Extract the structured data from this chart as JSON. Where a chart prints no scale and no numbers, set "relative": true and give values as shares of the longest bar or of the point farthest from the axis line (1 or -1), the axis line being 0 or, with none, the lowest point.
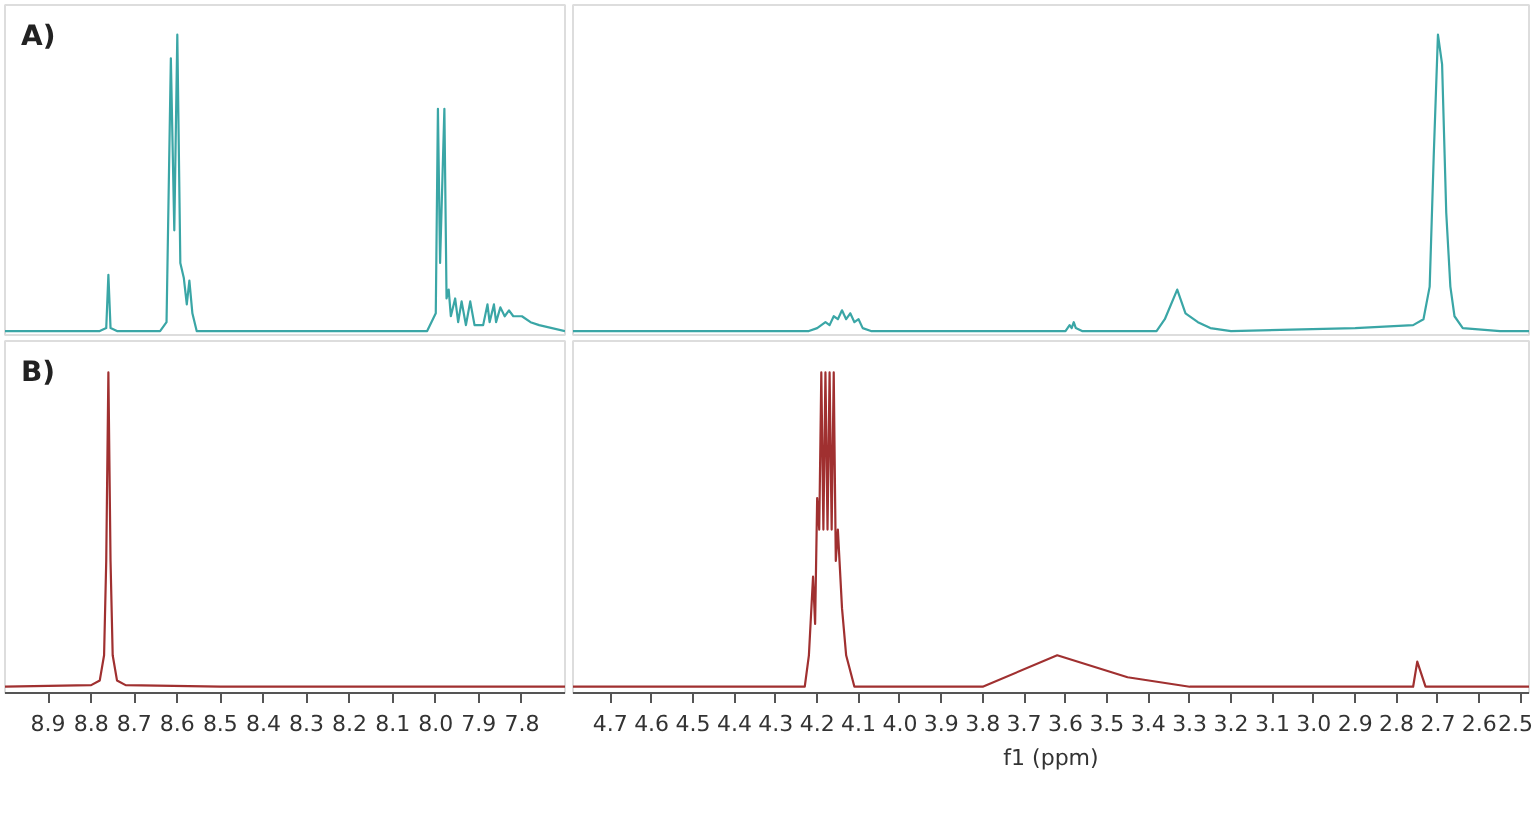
{
  "chart_data": [
    {
      "type": "line",
      "relative": true,
      "annotations": [
        "A)"
      ],
      "color": "#3aa6a6",
      "tick_labels": false,
      "xlim": [
        9.0,
        7.7
      ],
      "x": [
        9.0,
        8.78,
        8.765,
        8.76,
        8.755,
        8.74,
        8.64,
        8.625,
        8.615,
        8.607,
        8.6,
        8.593,
        8.585,
        8.578,
        8.572,
        8.565,
        8.555,
        8.02,
        8.0,
        7.995,
        7.99,
        7.98,
        7.975,
        7.97,
        7.965,
        7.955,
        7.948,
        7.94,
        7.93,
        7.92,
        7.91,
        7.89,
        7.88,
        7.875,
        7.865,
        7.86,
        7.85,
        7.84,
        7.83,
        7.82,
        7.8,
        7.78,
        7.76,
        7.7
      ],
      "values": [
        0,
        0,
        0.01,
        0.19,
        0.01,
        0,
        0,
        0.03,
        0.92,
        0.34,
        1.0,
        0.23,
        0.18,
        0.09,
        0.17,
        0.06,
        0,
        0,
        0.06,
        0.75,
        0.23,
        0.75,
        0.11,
        0.14,
        0.05,
        0.11,
        0.03,
        0.1,
        0.02,
        0.1,
        0.02,
        0.02,
        0.09,
        0.03,
        0.09,
        0.03,
        0.08,
        0.05,
        0.07,
        0.05,
        0.05,
        0.03,
        0.02,
        0
      ]
    },
    {
      "type": "line",
      "relative": true,
      "color": "#3aa6a6",
      "tick_labels": false,
      "xlim": [
        4.79,
        2.48
      ],
      "x": [
        4.79,
        4.22,
        4.2,
        4.18,
        4.17,
        4.16,
        4.15,
        4.14,
        4.13,
        4.12,
        4.11,
        4.1,
        4.09,
        4.07,
        3.6,
        3.59,
        3.585,
        3.58,
        3.575,
        3.56,
        3.38,
        3.36,
        3.33,
        3.31,
        3.28,
        3.25,
        3.2,
        2.9,
        2.76,
        2.735,
        2.72,
        2.71,
        2.7,
        2.69,
        2.68,
        2.67,
        2.66,
        2.64,
        2.55,
        2.48
      ],
      "values": [
        0,
        0,
        0.01,
        0.03,
        0.02,
        0.05,
        0.04,
        0.07,
        0.04,
        0.06,
        0.03,
        0.04,
        0.01,
        0,
        0,
        0.02,
        0.01,
        0.03,
        0.01,
        0,
        0,
        0.04,
        0.14,
        0.06,
        0.03,
        0.01,
        0,
        0.01,
        0.02,
        0.04,
        0.15,
        0.6,
        1.0,
        0.9,
        0.4,
        0.15,
        0.05,
        0.01,
        0,
        0
      ]
    },
    {
      "type": "line",
      "relative": true,
      "annotations": [
        "B)"
      ],
      "color": "#a03030",
      "tick_labels": "x",
      "xlim": [
        9.0,
        7.7
      ],
      "xticks": [
        8.9,
        8.8,
        8.7,
        8.6,
        8.5,
        8.4,
        8.3,
        8.2,
        8.1,
        {
          "value": 8,
          "label": "8.0"
        },
        7.9,
        7.8
      ],
      "x": [
        9.0,
        8.8,
        8.78,
        8.77,
        8.765,
        8.76,
        8.755,
        8.75,
        8.74,
        8.72,
        8.5,
        7.7
      ],
      "values": [
        0,
        0.005,
        0.02,
        0.1,
        0.4,
        1.0,
        0.4,
        0.1,
        0.02,
        0.005,
        0,
        0
      ]
    },
    {
      "type": "line",
      "relative": true,
      "color": "#a03030",
      "tick_labels": "x",
      "xlabel": "f1 (ppm)",
      "xlim": [
        4.79,
        2.48
      ],
      "xticks": [
        4.7,
        4.6,
        4.5,
        4.4,
        4.3,
        4.2,
        4.1,
        {
          "value": 4,
          "label": "4.0"
        },
        3.9,
        3.8,
        3.7,
        3.6,
        3.5,
        3.4,
        3.3,
        3.2,
        3.1,
        {
          "value": 3,
          "label": "3.0"
        },
        2.9,
        2.8,
        2.7,
        2.6,
        2.5
      ],
      "x": [
        4.79,
        4.23,
        4.22,
        4.21,
        4.205,
        4.2,
        4.195,
        4.19,
        4.185,
        4.18,
        4.175,
        4.17,
        4.165,
        4.16,
        4.155,
        4.15,
        4.14,
        4.13,
        4.11,
        3.8,
        3.62,
        3.45,
        3.3,
        2.76,
        2.75,
        2.73,
        2.48
      ],
      "values": [
        0,
        0,
        0.1,
        0.35,
        0.2,
        0.6,
        0.5,
        1.0,
        0.5,
        1.0,
        0.5,
        1.0,
        0.5,
        1.0,
        0.4,
        0.5,
        0.25,
        0.1,
        0,
        0,
        0.1,
        0.03,
        0,
        0,
        0.08,
        0,
        0
      ]
    }
  ]
}
